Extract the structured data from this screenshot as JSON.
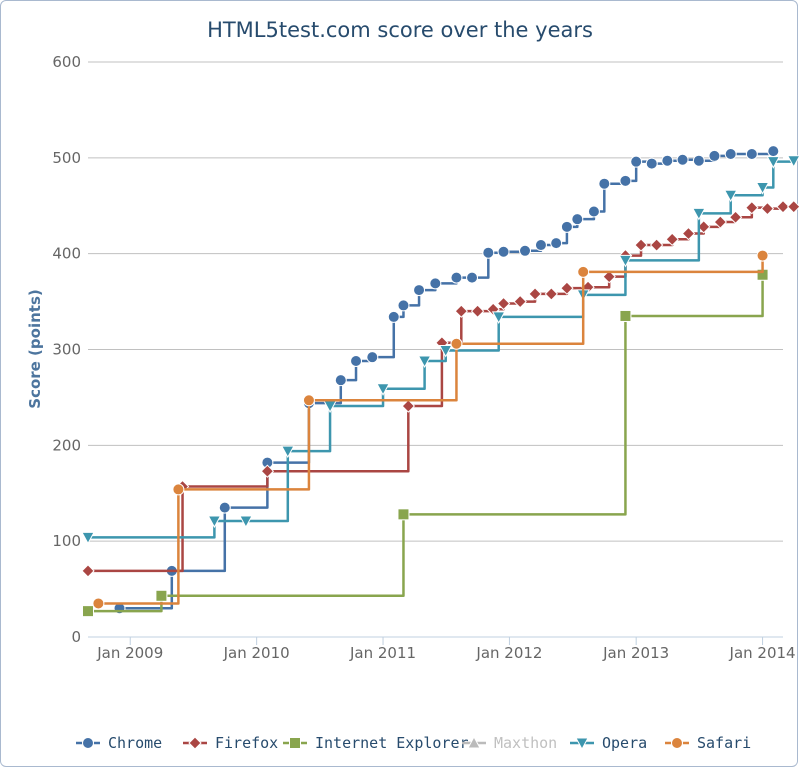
{
  "chart_data": {
    "type": "line",
    "step": true,
    "title": "HTML5test.com score over the years",
    "ylabel": "Score (points)",
    "xlabel": "",
    "ylim": [
      0,
      600
    ],
    "xlim": [
      "2008-09-01",
      "2014-03-01"
    ],
    "y_ticks": [
      0,
      100,
      200,
      300,
      400,
      500,
      600
    ],
    "x_ticks": [
      {
        "label": "Jan 2009",
        "date": "2009-01-01"
      },
      {
        "label": "Jan 2010",
        "date": "2010-01-01"
      },
      {
        "label": "Jan 2011",
        "date": "2011-01-01"
      },
      {
        "label": "Jan 2012",
        "date": "2012-01-01"
      },
      {
        "label": "Jan 2013",
        "date": "2013-01-01"
      },
      {
        "label": "Jan 2014",
        "date": "2014-01-01"
      }
    ],
    "grid": "horizontal",
    "legend": "bottom",
    "series": [
      {
        "name": "Chrome",
        "color": "#4572a7",
        "marker": "circle",
        "points": [
          [
            "2008-12-01",
            30
          ],
          [
            "2009-05-01",
            69
          ],
          [
            "2009-10-01",
            135
          ],
          [
            "2010-02-01",
            182
          ],
          [
            "2010-06-01",
            244
          ],
          [
            "2010-09-01",
            268
          ],
          [
            "2010-10-15",
            288
          ],
          [
            "2010-12-01",
            292
          ],
          [
            "2011-02-01",
            334
          ],
          [
            "2011-03-01",
            346
          ],
          [
            "2011-04-15",
            362
          ],
          [
            "2011-06-01",
            369
          ],
          [
            "2011-08-01",
            375
          ],
          [
            "2011-09-15",
            375
          ],
          [
            "2011-11-01",
            401
          ],
          [
            "2011-12-15",
            402
          ],
          [
            "2012-02-15",
            403
          ],
          [
            "2012-04-01",
            409
          ],
          [
            "2012-05-15",
            411
          ],
          [
            "2012-06-15",
            428
          ],
          [
            "2012-07-15",
            436
          ],
          [
            "2012-09-01",
            444
          ],
          [
            "2012-10-01",
            473
          ],
          [
            "2012-12-01",
            476
          ],
          [
            "2013-01-01",
            496
          ],
          [
            "2013-02-15",
            494
          ],
          [
            "2013-04-01",
            497
          ],
          [
            "2013-05-15",
            498
          ],
          [
            "2013-07-01",
            497
          ],
          [
            "2013-08-15",
            502
          ],
          [
            "2013-10-01",
            504
          ],
          [
            "2013-12-01",
            504
          ],
          [
            "2014-02-01",
            507
          ]
        ]
      },
      {
        "name": "Firefox",
        "color": "#aa4643",
        "marker": "diamond",
        "points": [
          [
            "2008-09-01",
            69
          ],
          [
            "2009-06-01",
            157
          ],
          [
            "2010-02-01",
            173
          ],
          [
            "2011-03-15",
            241
          ],
          [
            "2011-06-20",
            307
          ],
          [
            "2011-08-15",
            340
          ],
          [
            "2011-10-01",
            340
          ],
          [
            "2011-11-15",
            342
          ],
          [
            "2011-12-15",
            348
          ],
          [
            "2012-02-01",
            350
          ],
          [
            "2012-03-15",
            358
          ],
          [
            "2012-05-01",
            358
          ],
          [
            "2012-06-15",
            364
          ],
          [
            "2012-08-15",
            365
          ],
          [
            "2012-10-15",
            376
          ],
          [
            "2012-12-01",
            398
          ],
          [
            "2013-01-15",
            409
          ],
          [
            "2013-03-01",
            409
          ],
          [
            "2013-04-15",
            415
          ],
          [
            "2013-06-01",
            421
          ],
          [
            "2013-07-15",
            428
          ],
          [
            "2013-09-01",
            433
          ],
          [
            "2013-10-15",
            438
          ],
          [
            "2013-12-01",
            448
          ],
          [
            "2014-01-15",
            447
          ],
          [
            "2014-03-01",
            449
          ],
          [
            "2014-04-01",
            449
          ]
        ]
      },
      {
        "name": "Internet Explorer",
        "color": "#89a54e",
        "marker": "square",
        "points": [
          [
            "2008-09-01",
            27
          ],
          [
            "2009-04-01",
            43
          ],
          [
            "2011-03-01",
            128
          ],
          [
            "2012-12-01",
            335
          ],
          [
            "2014-01-01",
            378
          ]
        ]
      },
      {
        "name": "Maxthon",
        "color": "#bbbbbb",
        "marker": "triangle",
        "points": []
      },
      {
        "name": "Opera",
        "color": "#3d96ae",
        "marker": "triangle-down",
        "points": [
          [
            "2008-09-01",
            104
          ],
          [
            "2009-09-01",
            121
          ],
          [
            "2009-12-01",
            121
          ],
          [
            "2010-04-01",
            194
          ],
          [
            "2010-08-01",
            241
          ],
          [
            "2011-01-01",
            259
          ],
          [
            "2011-05-01",
            288
          ],
          [
            "2011-07-01",
            299
          ],
          [
            "2011-12-01",
            334
          ],
          [
            "2012-08-01",
            357
          ],
          [
            "2012-12-01",
            393
          ],
          [
            "2013-07-01",
            442
          ],
          [
            "2013-10-01",
            461
          ],
          [
            "2014-01-01",
            469
          ],
          [
            "2014-02-01",
            496
          ],
          [
            "2014-04-01",
            497
          ]
        ]
      },
      {
        "name": "Safari",
        "color": "#db843d",
        "marker": "circle",
        "points": [
          [
            "2008-10-01",
            35
          ],
          [
            "2009-05-20",
            154
          ],
          [
            "2010-06-01",
            247
          ],
          [
            "2011-08-01",
            306
          ],
          [
            "2012-08-01",
            381
          ],
          [
            "2014-01-01",
            398
          ]
        ]
      }
    ]
  }
}
